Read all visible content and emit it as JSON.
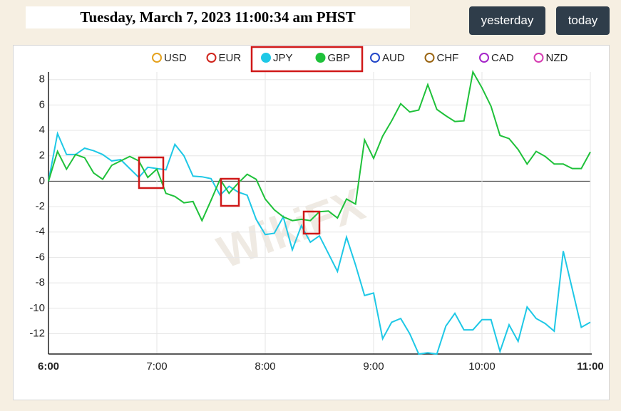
{
  "header": {
    "title": "Tuesday, March 7, 2023 11:00:34 am PHST",
    "buttons": [
      "yesterday",
      "today"
    ]
  },
  "chart_data": {
    "type": "line",
    "watermark": "WikiFX",
    "categories": [
      "6:00",
      null,
      null,
      null,
      null,
      null,
      null,
      null,
      null,
      null,
      null,
      null,
      "7:00",
      null,
      null,
      null,
      null,
      null,
      null,
      null,
      null,
      null,
      null,
      null,
      "8:00",
      null,
      null,
      null,
      null,
      null,
      null,
      null,
      null,
      null,
      null,
      null,
      "9:00",
      null,
      null,
      null,
      null,
      null,
      null,
      null,
      null,
      null,
      null,
      null,
      "10:00",
      null,
      null,
      null,
      null,
      null,
      null,
      null,
      null,
      null,
      null,
      null,
      "11:00"
    ],
    "series": [
      {
        "name": "USD",
        "color": "#e5a21f",
        "visible": false
      },
      {
        "name": "EUR",
        "color": "#d0241b",
        "visible": false
      },
      {
        "name": "JPY",
        "color": "#1ec8e6",
        "visible": true,
        "values": [
          0,
          3.75,
          2.1,
          2.1,
          2.6,
          2.4,
          2.1,
          1.6,
          1.7,
          1.0,
          0.3,
          1.1,
          1.0,
          0.9,
          2.9,
          2.0,
          0.4,
          0.35,
          0.2,
          -1.1,
          -0.4,
          -0.85,
          -1.1,
          -3.0,
          -4.2,
          -4.1,
          -2.8,
          -5.4,
          -3.5,
          -4.8,
          -4.3,
          -5.7,
          -7.1,
          -4.4,
          -6.6,
          -9.0,
          -8.8,
          -12.4,
          -11.1,
          -10.8,
          -12.0,
          -13.6,
          -13.5,
          -13.6,
          -11.4,
          -10.4,
          -11.7,
          -11.7,
          -10.9,
          -10.9,
          -13.4,
          -11.3,
          -12.6,
          -9.9,
          -10.8,
          -11.2,
          -11.8,
          -5.5,
          -8.5,
          -11.5,
          -11.1
        ]
      },
      {
        "name": "GBP",
        "color": "#1fc13a",
        "visible": true,
        "values": [
          0,
          2.35,
          0.95,
          2.1,
          1.85,
          0.65,
          0.15,
          1.25,
          1.6,
          1.95,
          1.6,
          0.3,
          0.95,
          -0.95,
          -1.2,
          -1.7,
          -1.6,
          -3.1,
          -1.5,
          0.15,
          -0.95,
          -0.15,
          0.55,
          0.15,
          -1.4,
          -2.25,
          -2.8,
          -3.1,
          -3.0,
          -3.1,
          -2.4,
          -2.35,
          -2.9,
          -1.4,
          -1.8,
          3.25,
          1.8,
          3.55,
          4.75,
          6.1,
          5.45,
          5.6,
          7.6,
          5.65,
          5.15,
          4.7,
          4.75,
          8.6,
          7.35,
          5.9,
          3.6,
          3.35,
          2.5,
          1.35,
          2.35,
          1.95,
          1.35,
          1.35,
          1.0,
          1.0,
          2.3
        ]
      },
      {
        "name": "AUD",
        "color": "#2347c8",
        "visible": false
      },
      {
        "name": "CHF",
        "color": "#9a6512",
        "visible": false
      },
      {
        "name": "CAD",
        "color": "#a526c9",
        "visible": false
      },
      {
        "name": "NZD",
        "color": "#d63cb2",
        "visible": false
      }
    ],
    "ylim": [
      -13.6,
      8.6
    ],
    "yticks": [
      8,
      6,
      4,
      2,
      0,
      -2,
      -4,
      -6,
      -8,
      -10,
      -12
    ],
    "grid": true
  }
}
